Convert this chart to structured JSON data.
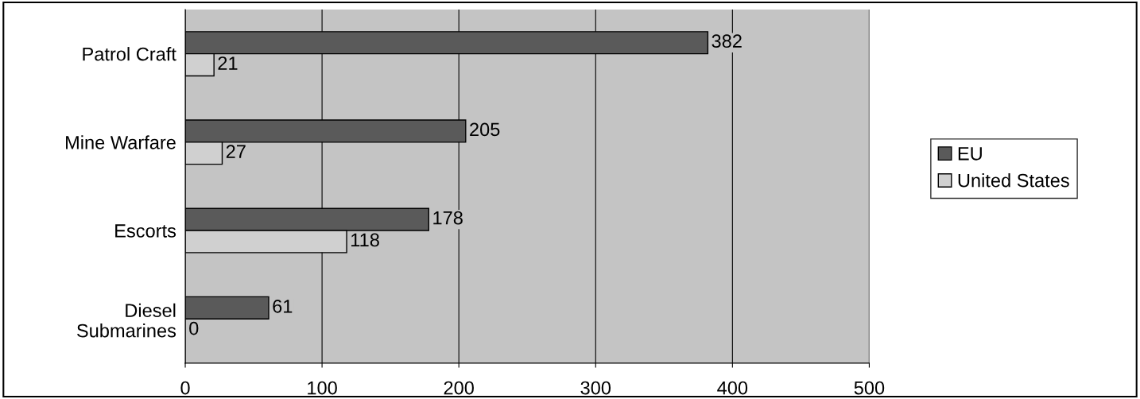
{
  "chart_data": {
    "type": "bar",
    "orientation": "horizontal",
    "categories": [
      "Patrol Craft",
      "Mine Warfare",
      "Escorts",
      "Diesel\nSubmarines"
    ],
    "series": [
      {
        "name": "EU",
        "color": "#5a5a5a",
        "values": [
          382,
          205,
          178,
          61
        ]
      },
      {
        "name": "United States",
        "color": "#d0d0d0",
        "values": [
          21,
          27,
          118,
          0
        ]
      }
    ],
    "xlim": [
      0,
      500
    ],
    "xticks": [
      0,
      100,
      200,
      300,
      400,
      500
    ],
    "grid": "x",
    "legend": "right",
    "data_labels": true
  }
}
